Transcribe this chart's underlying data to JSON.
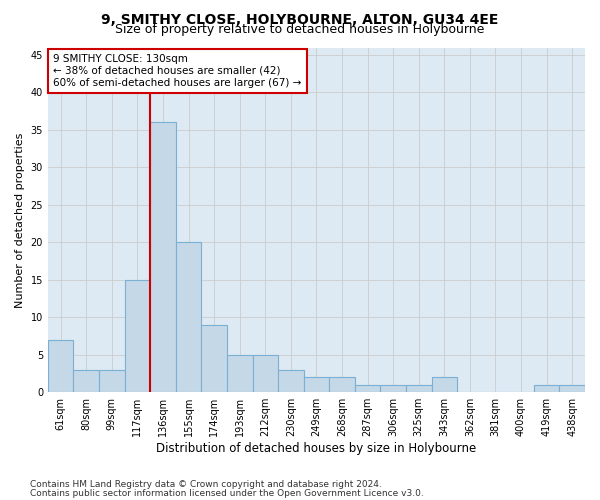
{
  "title1": "9, SMITHY CLOSE, HOLYBOURNE, ALTON, GU34 4EE",
  "title2": "Size of property relative to detached houses in Holybourne",
  "xlabel": "Distribution of detached houses by size in Holybourne",
  "ylabel": "Number of detached properties",
  "categories": [
    "61sqm",
    "80sqm",
    "99sqm",
    "117sqm",
    "136sqm",
    "155sqm",
    "174sqm",
    "193sqm",
    "212sqm",
    "230sqm",
    "249sqm",
    "268sqm",
    "287sqm",
    "306sqm",
    "325sqm",
    "343sqm",
    "362sqm",
    "381sqm",
    "400sqm",
    "419sqm",
    "438sqm"
  ],
  "values": [
    7,
    3,
    3,
    15,
    36,
    20,
    9,
    5,
    5,
    3,
    2,
    2,
    1,
    1,
    1,
    2,
    0,
    0,
    0,
    1,
    1
  ],
  "bar_color": "#c5d8e8",
  "bar_edgecolor": "#7bafd4",
  "bar_linewidth": 0.8,
  "vline_color": "#cc0000",
  "vline_linewidth": 1.5,
  "annotation_box_text": "9 SMITHY CLOSE: 130sqm\n← 38% of detached houses are smaller (42)\n60% of semi-detached houses are larger (67) →",
  "annotation_box_color": "#cc0000",
  "annotation_box_facecolor": "white",
  "ylim": [
    0,
    46
  ],
  "yticks": [
    0,
    5,
    10,
    15,
    20,
    25,
    30,
    35,
    40,
    45
  ],
  "grid_color": "#cccccc",
  "bg_color": "#dde9f3",
  "footer1": "Contains HM Land Registry data © Crown copyright and database right 2024.",
  "footer2": "Contains public sector information licensed under the Open Government Licence v3.0.",
  "title1_fontsize": 10,
  "title2_fontsize": 9,
  "xlabel_fontsize": 8.5,
  "ylabel_fontsize": 8,
  "tick_fontsize": 7,
  "ann_fontsize": 7.5,
  "footer_fontsize": 6.5
}
